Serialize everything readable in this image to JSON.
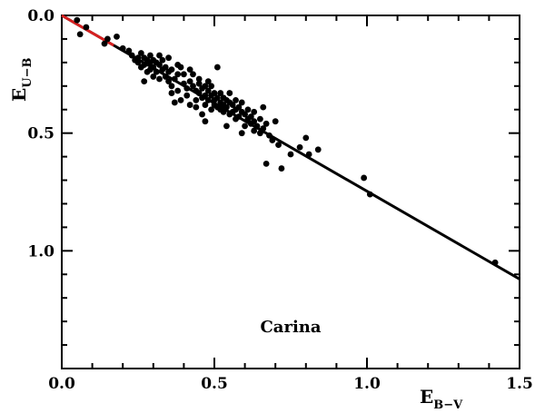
{
  "chart_data": {
    "type": "scatter",
    "title": "",
    "annotation": "Carina",
    "xlabel": {
      "main": "E",
      "sub": "B−V"
    },
    "ylabel": {
      "main": "E",
      "sub": "U−B"
    },
    "xlim": [
      0.0,
      1.5
    ],
    "ylim": [
      1.5,
      0.0
    ],
    "y_inverted": true,
    "x_ticks": [
      {
        "value": 0.0,
        "label": "0.0"
      },
      {
        "value": 0.5,
        "label": "0.5"
      },
      {
        "value": 1.0,
        "label": "1.0"
      },
      {
        "value": 1.5,
        "label": "1.5"
      }
    ],
    "y_ticks": [
      {
        "value": 0.0,
        "label": "0.0"
      },
      {
        "value": 0.5,
        "label": "0.5"
      },
      {
        "value": 1.0,
        "label": "1.0"
      }
    ],
    "x_minor_step": 0.1,
    "y_minor_step": 0.1,
    "grid": false,
    "colors": {
      "reddening_line": "#000000",
      "initial_segment": "#d62020",
      "points": "#000000"
    },
    "lines": [
      {
        "kind": "reddening-line",
        "x": [
          0.0,
          1.5
        ],
        "y": [
          0.0,
          1.12
        ]
      },
      {
        "kind": "initial-segment",
        "x": [
          0.0,
          0.17
        ],
        "y": [
          0.0,
          0.127
        ]
      }
    ],
    "points": [
      {
        "x": 0.05,
        "y": 0.02
      },
      {
        "x": 0.06,
        "y": 0.08
      },
      {
        "x": 0.08,
        "y": 0.05
      },
      {
        "x": 0.14,
        "y": 0.12
      },
      {
        "x": 0.15,
        "y": 0.1
      },
      {
        "x": 0.18,
        "y": 0.09
      },
      {
        "x": 0.2,
        "y": 0.14
      },
      {
        "x": 0.22,
        "y": 0.15
      },
      {
        "x": 0.23,
        "y": 0.17
      },
      {
        "x": 0.24,
        "y": 0.19
      },
      {
        "x": 0.25,
        "y": 0.18
      },
      {
        "x": 0.25,
        "y": 0.2
      },
      {
        "x": 0.26,
        "y": 0.16
      },
      {
        "x": 0.26,
        "y": 0.22
      },
      {
        "x": 0.27,
        "y": 0.18
      },
      {
        "x": 0.27,
        "y": 0.21
      },
      {
        "x": 0.27,
        "y": 0.28
      },
      {
        "x": 0.28,
        "y": 0.24
      },
      {
        "x": 0.28,
        "y": 0.19
      },
      {
        "x": 0.29,
        "y": 0.2
      },
      {
        "x": 0.29,
        "y": 0.23
      },
      {
        "x": 0.29,
        "y": 0.17
      },
      {
        "x": 0.3,
        "y": 0.22
      },
      {
        "x": 0.3,
        "y": 0.26
      },
      {
        "x": 0.3,
        "y": 0.19
      },
      {
        "x": 0.31,
        "y": 0.24
      },
      {
        "x": 0.31,
        "y": 0.2
      },
      {
        "x": 0.32,
        "y": 0.21
      },
      {
        "x": 0.32,
        "y": 0.17
      },
      {
        "x": 0.32,
        "y": 0.27
      },
      {
        "x": 0.33,
        "y": 0.23
      },
      {
        "x": 0.33,
        "y": 0.19
      },
      {
        "x": 0.34,
        "y": 0.26
      },
      {
        "x": 0.34,
        "y": 0.22
      },
      {
        "x": 0.35,
        "y": 0.18
      },
      {
        "x": 0.35,
        "y": 0.28
      },
      {
        "x": 0.35,
        "y": 0.24
      },
      {
        "x": 0.36,
        "y": 0.3
      },
      {
        "x": 0.36,
        "y": 0.23
      },
      {
        "x": 0.37,
        "y": 0.27
      },
      {
        "x": 0.37,
        "y": 0.37
      },
      {
        "x": 0.38,
        "y": 0.25
      },
      {
        "x": 0.38,
        "y": 0.32
      },
      {
        "x": 0.39,
        "y": 0.36
      },
      {
        "x": 0.39,
        "y": 0.22
      },
      {
        "x": 0.4,
        "y": 0.29
      },
      {
        "x": 0.4,
        "y": 0.25
      },
      {
        "x": 0.41,
        "y": 0.31
      },
      {
        "x": 0.41,
        "y": 0.34
      },
      {
        "x": 0.42,
        "y": 0.23
      },
      {
        "x": 0.42,
        "y": 0.28
      },
      {
        "x": 0.43,
        "y": 0.3
      },
      {
        "x": 0.43,
        "y": 0.25
      },
      {
        "x": 0.44,
        "y": 0.32
      },
      {
        "x": 0.44,
        "y": 0.36
      },
      {
        "x": 0.44,
        "y": 0.39
      },
      {
        "x": 0.45,
        "y": 0.29
      },
      {
        "x": 0.45,
        "y": 0.33
      },
      {
        "x": 0.45,
        "y": 0.27
      },
      {
        "x": 0.46,
        "y": 0.31
      },
      {
        "x": 0.46,
        "y": 0.35
      },
      {
        "x": 0.46,
        "y": 0.42
      },
      {
        "x": 0.47,
        "y": 0.3
      },
      {
        "x": 0.47,
        "y": 0.34
      },
      {
        "x": 0.47,
        "y": 0.38
      },
      {
        "x": 0.48,
        "y": 0.32
      },
      {
        "x": 0.48,
        "y": 0.36
      },
      {
        "x": 0.48,
        "y": 0.28
      },
      {
        "x": 0.49,
        "y": 0.34
      },
      {
        "x": 0.49,
        "y": 0.4
      },
      {
        "x": 0.49,
        "y": 0.3
      },
      {
        "x": 0.5,
        "y": 0.36
      },
      {
        "x": 0.5,
        "y": 0.38
      },
      {
        "x": 0.5,
        "y": 0.33
      },
      {
        "x": 0.51,
        "y": 0.35
      },
      {
        "x": 0.51,
        "y": 0.39
      },
      {
        "x": 0.51,
        "y": 0.22
      },
      {
        "x": 0.52,
        "y": 0.37
      },
      {
        "x": 0.52,
        "y": 0.4
      },
      {
        "x": 0.52,
        "y": 0.33
      },
      {
        "x": 0.53,
        "y": 0.38
      },
      {
        "x": 0.53,
        "y": 0.35
      },
      {
        "x": 0.53,
        "y": 0.41
      },
      {
        "x": 0.54,
        "y": 0.36
      },
      {
        "x": 0.54,
        "y": 0.39
      },
      {
        "x": 0.55,
        "y": 0.37
      },
      {
        "x": 0.55,
        "y": 0.42
      },
      {
        "x": 0.55,
        "y": 0.33
      },
      {
        "x": 0.56,
        "y": 0.38
      },
      {
        "x": 0.56,
        "y": 0.41
      },
      {
        "x": 0.57,
        "y": 0.4
      },
      {
        "x": 0.57,
        "y": 0.36
      },
      {
        "x": 0.58,
        "y": 0.43
      },
      {
        "x": 0.58,
        "y": 0.39
      },
      {
        "x": 0.59,
        "y": 0.41
      },
      {
        "x": 0.59,
        "y": 0.37
      },
      {
        "x": 0.6,
        "y": 0.42
      },
      {
        "x": 0.6,
        "y": 0.47
      },
      {
        "x": 0.61,
        "y": 0.44
      },
      {
        "x": 0.61,
        "y": 0.4
      },
      {
        "x": 0.62,
        "y": 0.43
      },
      {
        "x": 0.62,
        "y": 0.46
      },
      {
        "x": 0.63,
        "y": 0.45
      },
      {
        "x": 0.63,
        "y": 0.41
      },
      {
        "x": 0.64,
        "y": 0.47
      },
      {
        "x": 0.65,
        "y": 0.44
      },
      {
        "x": 0.65,
        "y": 0.5
      },
      {
        "x": 0.66,
        "y": 0.48
      },
      {
        "x": 0.66,
        "y": 0.39
      },
      {
        "x": 0.67,
        "y": 0.46
      },
      {
        "x": 0.67,
        "y": 0.63
      },
      {
        "x": 0.68,
        "y": 0.51
      },
      {
        "x": 0.69,
        "y": 0.53
      },
      {
        "x": 0.7,
        "y": 0.45
      },
      {
        "x": 0.71,
        "y": 0.55
      },
      {
        "x": 0.72,
        "y": 0.65
      },
      {
        "x": 0.75,
        "y": 0.59
      },
      {
        "x": 0.78,
        "y": 0.56
      },
      {
        "x": 0.8,
        "y": 0.52
      },
      {
        "x": 0.81,
        "y": 0.59
      },
      {
        "x": 0.84,
        "y": 0.57
      },
      {
        "x": 0.99,
        "y": 0.69
      },
      {
        "x": 1.01,
        "y": 0.76
      },
      {
        "x": 1.42,
        "y": 1.05
      },
      {
        "x": 0.54,
        "y": 0.47
      },
      {
        "x": 0.57,
        "y": 0.44
      },
      {
        "x": 0.63,
        "y": 0.49
      },
      {
        "x": 0.59,
        "y": 0.5
      },
      {
        "x": 0.38,
        "y": 0.21
      },
      {
        "x": 0.42,
        "y": 0.38
      },
      {
        "x": 0.47,
        "y": 0.45
      },
      {
        "x": 0.36,
        "y": 0.33
      }
    ]
  }
}
